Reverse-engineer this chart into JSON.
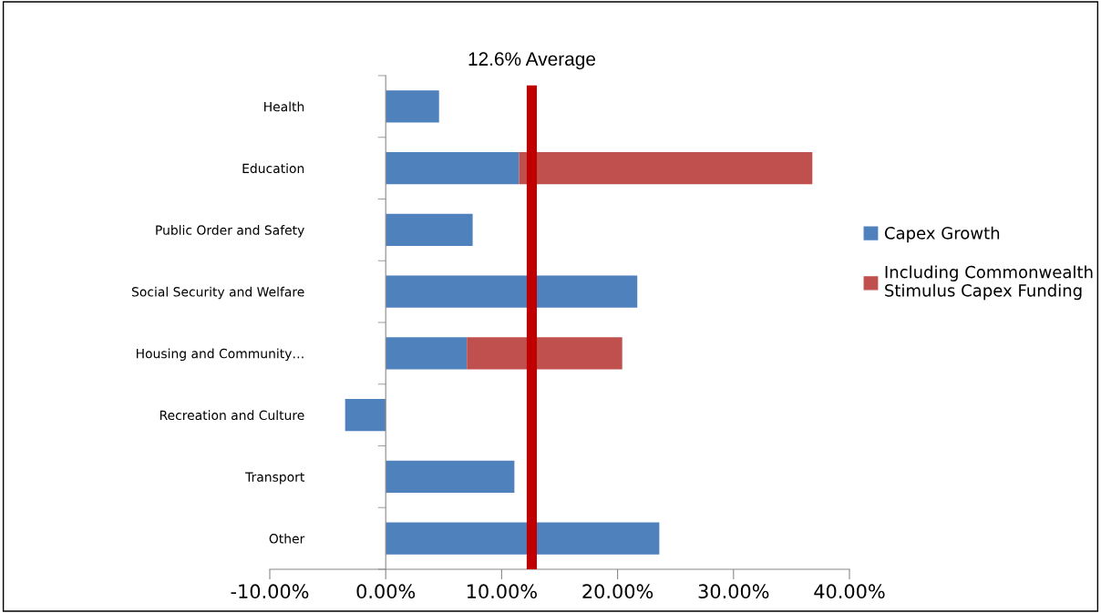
{
  "chart_data": {
    "type": "bar",
    "orientation": "horizontal",
    "stacked": true,
    "categories": [
      "Health",
      "Education",
      "Public Order and Safety",
      "Social Security and Welfare",
      "Housing and Community…",
      "Recreation and Culture",
      "Transport",
      "Other"
    ],
    "series": [
      {
        "name": "Capex Growth",
        "color": "#4f81bd",
        "values": [
          4.6,
          11.5,
          7.5,
          21.7,
          7.0,
          -3.5,
          11.1,
          23.6
        ]
      },
      {
        "name": "Including Commonwealth\nStimulus Capex Funding",
        "color": "#c0504d",
        "values": [
          null,
          25.3,
          null,
          null,
          13.4,
          null,
          null,
          null
        ]
      }
    ],
    "xlim": [
      -10,
      40
    ],
    "xticks": [
      {
        "value": -10,
        "label": "-10.00%"
      },
      {
        "value": 0,
        "label": "0.00%"
      },
      {
        "value": 10,
        "label": "10.00%"
      },
      {
        "value": 20,
        "label": "20.00%"
      },
      {
        "value": 30,
        "label": "30.00%"
      },
      {
        "value": 40,
        "label": "40.00%"
      }
    ],
    "ref_lines": [
      {
        "axis": "x",
        "value": 12.6,
        "label": "12.6% Average",
        "color": "#c00000"
      }
    ],
    "legend": "right"
  }
}
